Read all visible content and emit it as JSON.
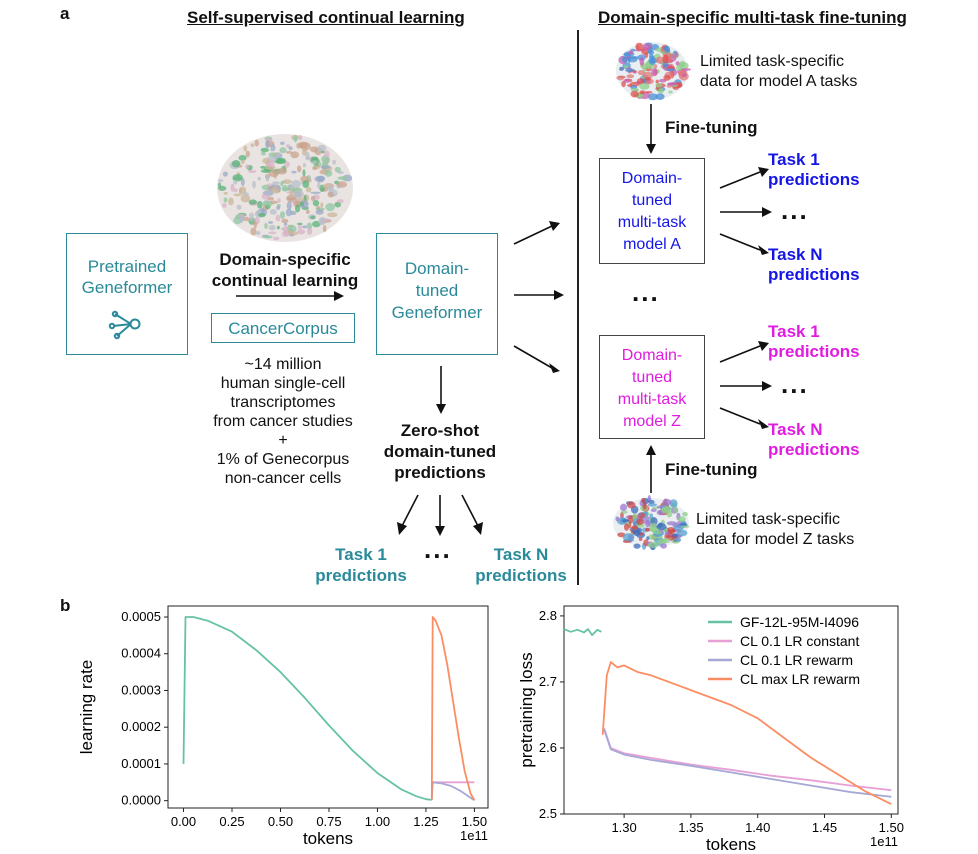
{
  "panel_a": {
    "letter": "a",
    "left_heading": "Self-supervised continual learning",
    "right_heading": "Domain-specific multi-task fine-tuning",
    "pretrained_box": [
      "Pretrained",
      "Geneformer"
    ],
    "continual_label": [
      "Domain-specific",
      "continual learning"
    ],
    "corpus_label": "CancerCorpus",
    "corpus_desc": [
      "~14 million",
      "human single-cell",
      "transcriptomes",
      "from cancer studies",
      "+",
      "1% of Genecorpus",
      "non-cancer cells"
    ],
    "domain_box": [
      "Domain-",
      "tuned",
      "Geneformer"
    ],
    "zero_shot": [
      "Zero-shot",
      "domain-tuned",
      "predictions"
    ],
    "bottom_task1": [
      "Task 1",
      "predictions"
    ],
    "bottom_taskn": [
      "Task N",
      "predictions"
    ],
    "data_a": [
      "Limited task-specific",
      "data for model A tasks"
    ],
    "data_z": [
      "Limited task-specific",
      "data for model Z tasks"
    ],
    "fine_tuning": "Fine-tuning",
    "model_a": [
      "Domain-",
      "tuned",
      "multi-task",
      "model A"
    ],
    "model_z": [
      "Domain-",
      "tuned",
      "multi-task",
      "model Z"
    ],
    "task1": [
      "Task 1",
      "predictions"
    ],
    "taskn": [
      "Task N",
      "predictions"
    ],
    "dots": "...",
    "colors": {
      "teal": "#2a8a9a",
      "blue": "#1515e6",
      "magenta": "#e01ce0"
    }
  },
  "panel_b": {
    "letter": "b"
  },
  "chart_data": [
    {
      "type": "line",
      "xlabel": "tokens",
      "ylabel": "learning rate",
      "x_multiplier_label": "1e11",
      "xlim": [
        -0.08,
        1.57
      ],
      "ylim": [
        -2e-05,
        0.00053
      ],
      "xticks": [
        0.0,
        0.25,
        0.5,
        0.75,
        1.0,
        1.25,
        1.5
      ],
      "xtick_labels": [
        "0.00",
        "0.25",
        "0.50",
        "0.75",
        "1.00",
        "1.25",
        "1.50"
      ],
      "yticks": [
        0.0,
        0.0001,
        0.0002,
        0.0003,
        0.0004,
        0.0005
      ],
      "ytick_labels": [
        "0.0000",
        "0.0001",
        "0.0002",
        "0.0003",
        "0.0004",
        "0.0005"
      ],
      "series": [
        {
          "color": "#66c2a5",
          "x": [
            0.0,
            0.01,
            0.05,
            0.125,
            0.25,
            0.375,
            0.5,
            0.625,
            0.75,
            0.875,
            1.0,
            1.125,
            1.2,
            1.25,
            1.28
          ],
          "y": [
            0.0001,
            0.0005,
            0.0005,
            0.00049,
            0.00046,
            0.00041,
            0.00035,
            0.00028,
            0.000205,
            0.000135,
            7.5e-05,
            3e-05,
            1.2e-05,
            4e-06,
            2e-06
          ]
        },
        {
          "color": "#e7a0d6",
          "x": [
            1.28,
            1.285,
            1.5
          ],
          "y": [
            5e-05,
            5e-05,
            5e-05
          ]
        },
        {
          "color": "#a6a8d6",
          "x": [
            1.28,
            1.285,
            1.33,
            1.38,
            1.43,
            1.48,
            1.5
          ],
          "y": [
            2e-06,
            5e-05,
            4.7e-05,
            4e-05,
            2.6e-05,
            8e-06,
            1e-06
          ]
        },
        {
          "color": "#fc8d62",
          "x": [
            1.28,
            1.285,
            1.3,
            1.33,
            1.36,
            1.39,
            1.42,
            1.45,
            1.48,
            1.5
          ],
          "y": [
            2e-06,
            0.0005,
            0.00049,
            0.00045,
            0.00037,
            0.00027,
            0.00017,
            8e-05,
            2e-05,
            1e-06
          ]
        }
      ]
    },
    {
      "type": "line",
      "xlabel": "tokens",
      "ylabel": "pretraining loss",
      "x_multiplier_label": "1e11",
      "xlim": [
        1.255,
        1.505
      ],
      "ylim": [
        2.5,
        2.815
      ],
      "xticks": [
        1.3,
        1.35,
        1.4,
        1.45,
        1.5
      ],
      "xtick_labels": [
        "1.30",
        "1.35",
        "1.40",
        "1.45",
        "1.50"
      ],
      "yticks": [
        2.5,
        2.6,
        2.7,
        2.8
      ],
      "ytick_labels": [
        "2.5",
        "2.6",
        "2.7",
        "2.8"
      ],
      "legend_position": "top-right",
      "series": [
        {
          "name": "GF-12L-95M-I4096",
          "color": "#66c2a5",
          "x": [
            1.255,
            1.26,
            1.265,
            1.27,
            1.273,
            1.276,
            1.28,
            1.283
          ],
          "y": [
            2.78,
            2.776,
            2.779,
            2.775,
            2.78,
            2.771,
            2.779,
            2.776
          ]
        },
        {
          "name": "CL 0.1 LR constant",
          "color": "#e7a0d6",
          "x": [
            1.285,
            1.29,
            1.3,
            1.32,
            1.35,
            1.38,
            1.41,
            1.44,
            1.47,
            1.5
          ],
          "y": [
            2.63,
            2.6,
            2.592,
            2.585,
            2.575,
            2.567,
            2.558,
            2.551,
            2.543,
            2.536
          ]
        },
        {
          "name": "CL 0.1 LR rewarm",
          "color": "#a6a8d6",
          "x": [
            1.285,
            1.29,
            1.3,
            1.32,
            1.35,
            1.38,
            1.41,
            1.44,
            1.47,
            1.5
          ],
          "y": [
            2.628,
            2.598,
            2.59,
            2.582,
            2.573,
            2.563,
            2.553,
            2.543,
            2.533,
            2.526
          ]
        },
        {
          "name": "CL max LR rewarm",
          "color": "#fc8d62",
          "x": [
            1.284,
            1.287,
            1.29,
            1.295,
            1.3,
            1.31,
            1.32,
            1.34,
            1.36,
            1.38,
            1.4,
            1.42,
            1.44,
            1.46,
            1.48,
            1.5
          ],
          "y": [
            2.62,
            2.71,
            2.73,
            2.722,
            2.725,
            2.715,
            2.71,
            2.695,
            2.68,
            2.665,
            2.645,
            2.615,
            2.585,
            2.56,
            2.535,
            2.515
          ]
        }
      ]
    }
  ]
}
